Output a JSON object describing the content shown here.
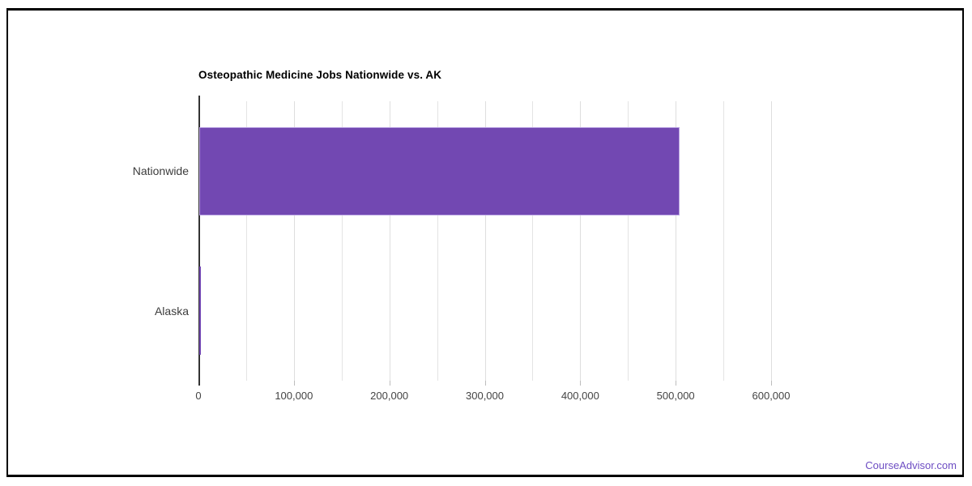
{
  "page": {
    "background": "#ffffff",
    "frame_border_color": "#000000",
    "watermark": "CourseAdvisor.com",
    "watermark_color": "#6d4dc3"
  },
  "chart_data": {
    "type": "bar",
    "orientation": "horizontal",
    "title": "Osteopathic Medicine Jobs Nationwide vs. AK",
    "categories": [
      "Nationwide",
      "Alaska"
    ],
    "values": [
      503000,
      1000
    ],
    "xlabel": "",
    "ylabel": "",
    "xlim": [
      0,
      632000
    ],
    "x_tick_values": [
      0,
      100000,
      200000,
      300000,
      400000,
      500000,
      600000
    ],
    "x_tick_labels": [
      "0",
      "100,000",
      "200,000",
      "300,000",
      "400,000",
      "500,000",
      "600,000"
    ],
    "minor_gridline_interval": 50000,
    "gridlines_on": true,
    "legend": "none",
    "bar_color": "#7248b2",
    "bar_edge_color": "#b9a2e2",
    "gridline_color": "#e4e4e4",
    "axis_line_color": "#333333",
    "tick_label_color": "#444444",
    "category_label_color": "#3c3c3c",
    "title_color": "#000000"
  }
}
